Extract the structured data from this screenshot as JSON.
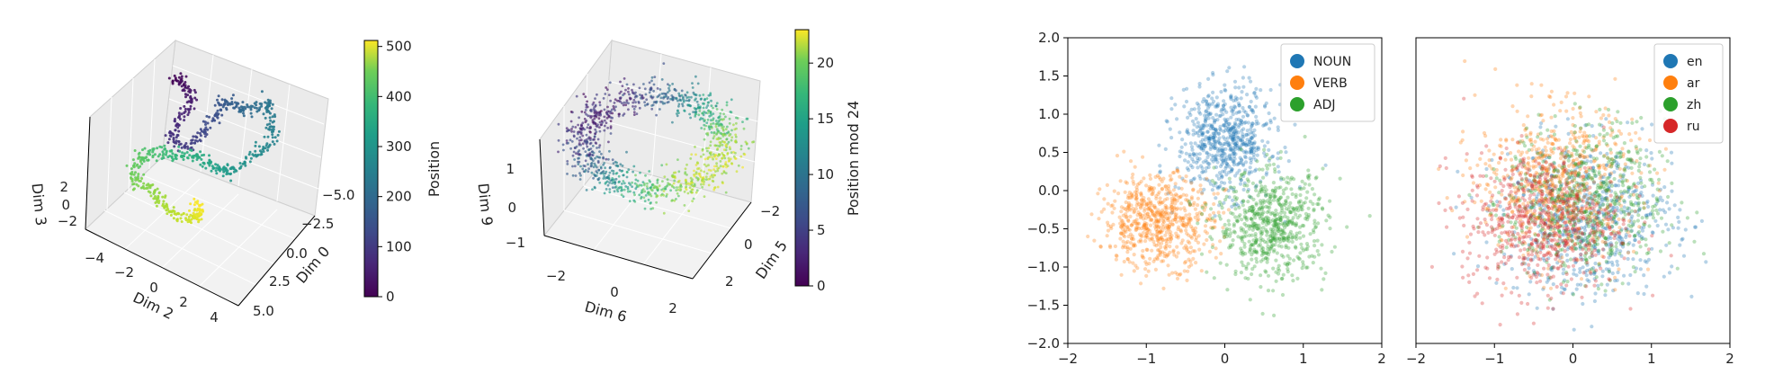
{
  "chart_data": [
    {
      "type": "scatter",
      "projection": "3d",
      "xlabel": "Dim 2",
      "ylabel": "Dim 0",
      "zlabel": "Dim 3",
      "xticks": [
        "−4",
        "−2",
        "0",
        "2",
        "4"
      ],
      "yticks": [
        "−5.0",
        "−2.5",
        "0.0",
        "2.5",
        "5.0"
      ],
      "zticks": [
        "2",
        "0",
        "−2"
      ],
      "colormap": "viridis",
      "colorbar": {
        "label": "Position",
        "range": [
          0,
          512
        ],
        "ticks": [
          "0",
          "100",
          "200",
          "300",
          "400",
          "500"
        ]
      }
    },
    {
      "type": "scatter",
      "projection": "3d",
      "xlabel": "Dim 6",
      "ylabel": "Dim 5",
      "zlabel": "Dim 9",
      "xticks": [
        "−2",
        "0",
        "2"
      ],
      "yticks": [
        "−2",
        "0",
        "2"
      ],
      "zticks": [
        "1",
        "0",
        "−1"
      ],
      "colormap": "viridis",
      "colorbar": {
        "label": "Position mod 24",
        "range": [
          0,
          23
        ],
        "ticks": [
          "0",
          "5",
          "10",
          "15",
          "20"
        ]
      }
    },
    {
      "type": "scatter",
      "xlim": [
        -2,
        2
      ],
      "ylim": [
        -2,
        2
      ],
      "xticks": [
        "−2",
        "−1",
        "0",
        "1",
        "2"
      ],
      "yticks": [
        "2.0",
        "1.5",
        "1.0",
        "0.5",
        "0.0",
        "−0.5",
        "−1.0",
        "−1.5",
        "−2.0"
      ],
      "legend_position": "top-right",
      "series": [
        {
          "name": "NOUN",
          "color": "#1f77b4",
          "center": [
            0.0,
            0.65
          ],
          "spread": [
            0.3,
            0.35
          ]
        },
        {
          "name": "VERB",
          "color": "#ff7f0e",
          "center": [
            -0.85,
            -0.4
          ],
          "spread": [
            0.35,
            0.3
          ]
        },
        {
          "name": "ADJ",
          "color": "#2ca02c",
          "center": [
            0.6,
            -0.45
          ],
          "spread": [
            0.35,
            0.35
          ]
        }
      ]
    },
    {
      "type": "scatter",
      "xlim": [
        -2,
        2
      ],
      "ylim": [
        -2,
        2
      ],
      "xticks": [
        "−2",
        "−1",
        "0",
        "1",
        "2"
      ],
      "legend_position": "top-right",
      "series": [
        {
          "name": "en",
          "color": "#1f77b4",
          "center": [
            0.2,
            -0.35
          ],
          "spread": [
            0.55,
            0.5
          ]
        },
        {
          "name": "ar",
          "color": "#ff7f0e",
          "center": [
            -0.2,
            0.1
          ],
          "spread": [
            0.5,
            0.5
          ]
        },
        {
          "name": "zh",
          "color": "#2ca02c",
          "center": [
            0.15,
            -0.15
          ],
          "spread": [
            0.5,
            0.5
          ]
        },
        {
          "name": "ru",
          "color": "#d62728",
          "center": [
            -0.4,
            -0.4
          ],
          "spread": [
            0.5,
            0.45
          ]
        }
      ]
    }
  ]
}
